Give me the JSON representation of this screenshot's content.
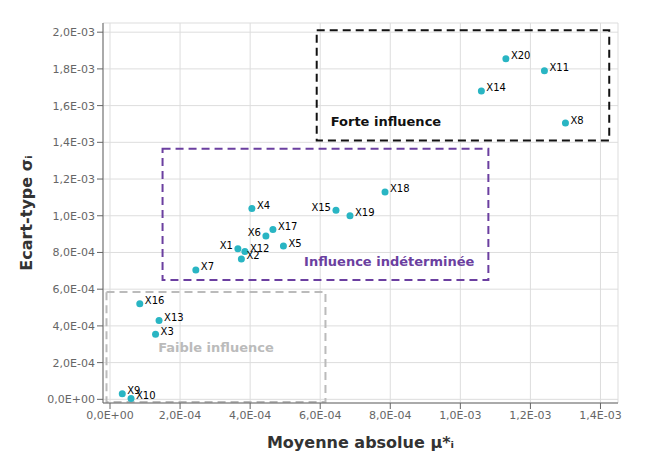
{
  "chart_data": {
    "type": "scatter",
    "xlabel": "Moyenne absolue μ*ᵢ",
    "ylabel": "Ecart-type σᵢ",
    "color": "#29B5C3",
    "grid": true,
    "point_labels": [
      "X20",
      "X11",
      "X14",
      "X8",
      "X18",
      "X15",
      "X19",
      "X4",
      "X17",
      "X6",
      "X5",
      "X1",
      "X12",
      "X2",
      "X7",
      "X16",
      "X13",
      "X3",
      "X9",
      "X10"
    ],
    "x": [
      0.00113,
      0.00124,
      0.00106,
      0.0013,
      0.000785,
      0.000645,
      0.000685,
      0.000405,
      0.000465,
      0.000445,
      0.000495,
      0.000365,
      0.000385,
      0.000375,
      0.000245,
      8.5e-05,
      0.00014,
      0.00013,
      3.5e-05,
      6e-05
    ],
    "values": [
      0.001855,
      0.00179,
      0.00168,
      0.001505,
      0.00113,
      0.00103,
      0.001,
      0.00104,
      0.000925,
      0.00089,
      0.000835,
      0.00082,
      0.000805,
      0.000765,
      0.000705,
      0.00052,
      0.00043,
      0.000355,
      3e-05,
      5e-06
    ],
    "xlim": [
      -2e-05,
      0.00145
    ],
    "ylim": [
      -2e-05,
      0.00205
    ],
    "xticks": [
      {
        "value": 0,
        "label": "0,0E+00"
      },
      {
        "value": 0.0002,
        "label": "2,0E-04"
      },
      {
        "value": 0.0004,
        "label": "4,0E-04"
      },
      {
        "value": 0.0006,
        "label": "6,0E-04"
      },
      {
        "value": 0.0008,
        "label": "8,0E-04"
      },
      {
        "value": 0.001,
        "label": "1,0E-03"
      },
      {
        "value": 0.0012,
        "label": "1,2E-03"
      },
      {
        "value": 0.0014,
        "label": "1,4E-03"
      }
    ],
    "yticks": [
      {
        "value": 0,
        "label": "0,0E+00"
      },
      {
        "value": 0.0002,
        "label": "2,0E-04"
      },
      {
        "value": 0.0004,
        "label": "4,0E-04"
      },
      {
        "value": 0.0006,
        "label": "6,0E-04"
      },
      {
        "value": 0.0008,
        "label": "8,0E-04"
      },
      {
        "value": 0.001,
        "label": "1,0E-03"
      },
      {
        "value": 0.0012,
        "label": "1,2E-03"
      },
      {
        "value": 0.0014,
        "label": "1,4E-03"
      },
      {
        "value": 0.0016,
        "label": "1,6E-03"
      },
      {
        "value": 0.0018,
        "label": "1,8E-03"
      },
      {
        "value": 0.002,
        "label": "2,0E-03"
      }
    ],
    "annotations": [
      {
        "text": "Forte influence",
        "x0": 0.00059,
        "y0": 0.00141,
        "x1": 0.001425,
        "y1": 0.00201,
        "color": "#111111"
      },
      {
        "text": "Influence indéterminée",
        "x0": 0.00015,
        "y0": 0.00065,
        "x1": 0.00108,
        "y1": 0.001365,
        "color": "#6B3FA0"
      },
      {
        "text": "Faible influence",
        "x0": -1e-05,
        "y0": -1.5e-05,
        "x1": 0.000615,
        "y1": 0.000585,
        "color": "#BBBBBB"
      }
    ]
  }
}
